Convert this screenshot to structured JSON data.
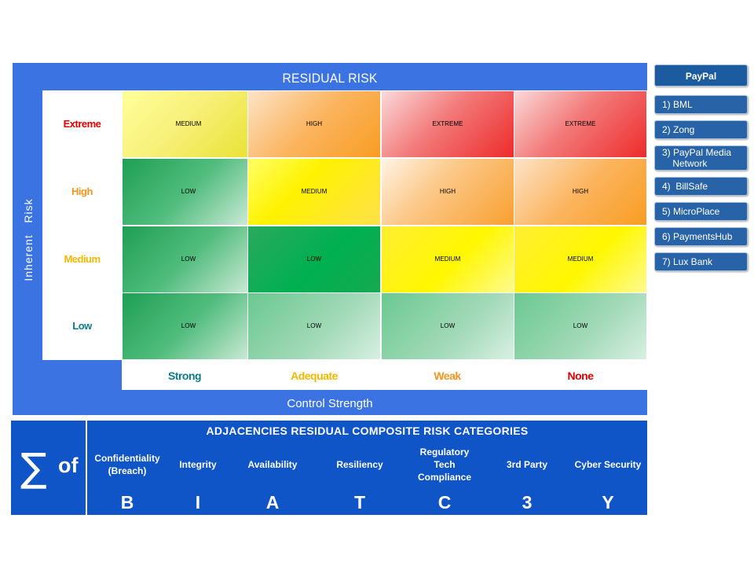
{
  "residual_risk": {
    "title": "RESIDUAL RISK",
    "inherent_axis_label": "Inherent   Risk",
    "control_axis_label": "Control Strength",
    "inherent_levels": [
      "Extreme",
      "High",
      "Medium",
      "Low"
    ],
    "control_levels": [
      "Strong",
      "Adequate",
      "Weak",
      "None"
    ],
    "matrix": [
      [
        "MEDIUM",
        "HIGH",
        "EXTREME",
        "EXTREME"
      ],
      [
        "LOW",
        "MEDIUM",
        "HIGH",
        "HIGH"
      ],
      [
        "LOW",
        "LOW",
        "MEDIUM",
        "MEDIUM"
      ],
      [
        "LOW",
        "LOW",
        "LOW",
        "LOW"
      ]
    ],
    "colors": {
      "frame": "#3b73e3",
      "extreme_label": "#e60000",
      "high_label": "#f7941d",
      "medium_label": "#f5b800",
      "low_label": "#0b7c8c",
      "strong_label": "#0b7c8c",
      "adequate_label": "#f5b800",
      "weak_label": "#f7941d",
      "none_label": "#e60000"
    }
  },
  "sidebar": {
    "header": "PayPal",
    "items": [
      "1) BML",
      "2) Zong",
      "3) PayPal Media\n    Network",
      "4)  BillSafe",
      "5) MicroPlace",
      "6) PaymentsHub",
      "7) Lux Bank"
    ]
  },
  "adjacencies": {
    "sigma": "∑",
    "of": "of",
    "title": "ADJACENCIES RESIDUAL COMPOSITE RISK CATEGORIES",
    "categories": [
      {
        "name": "Confidentiality\n(Breach)",
        "letter": "B"
      },
      {
        "name": "Integrity",
        "letter": "I"
      },
      {
        "name": "Availability",
        "letter": "A"
      },
      {
        "name": "Resiliency",
        "letter": "T"
      },
      {
        "name": "Regulatory\nTech\nCompliance",
        "letter": "C"
      },
      {
        "name": "3rd Party",
        "letter": "3"
      },
      {
        "name": "Cyber Security",
        "letter": "Y"
      }
    ],
    "panel_color": "#0f55c8"
  }
}
